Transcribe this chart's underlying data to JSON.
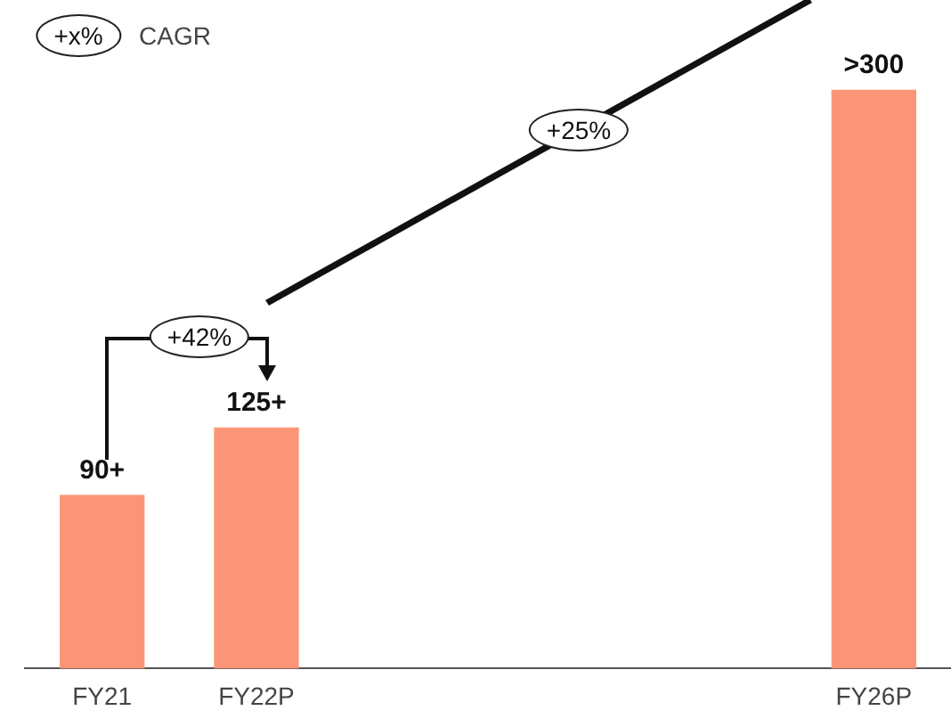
{
  "chart_data": {
    "type": "bar",
    "categories": [
      "FY21",
      "FY22P",
      null,
      null,
      null,
      "FY26P"
    ],
    "values": [
      90,
      125,
      null,
      null,
      null,
      300
    ],
    "value_labels": [
      "90+",
      "125+",
      null,
      null,
      null,
      ">300"
    ],
    "color": "#fa9677",
    "grid": false,
    "legend": false,
    "annotations": [
      "+x%",
      "CAGR",
      "+42%",
      "+25%"
    ]
  }
}
